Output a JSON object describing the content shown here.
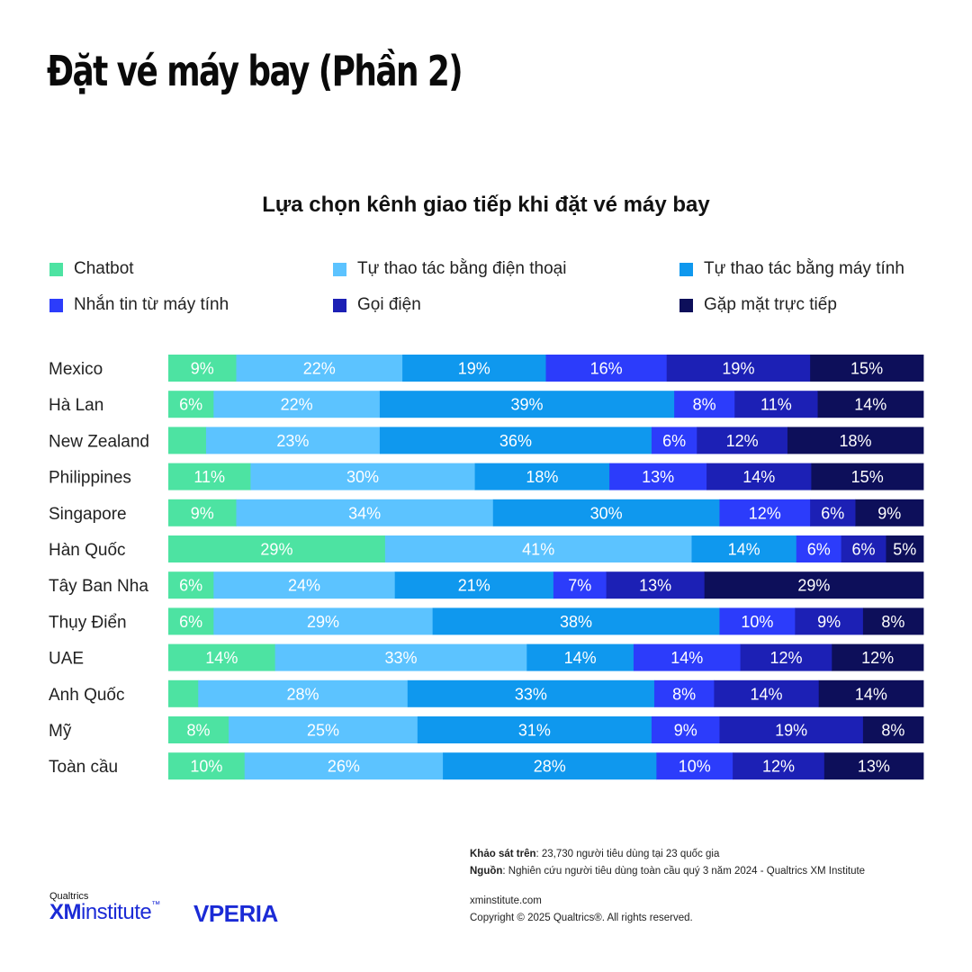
{
  "page_title": "Đặt vé máy bay (Phần 2)",
  "colors": [
    "#4de3a2",
    "#5cc3ff",
    "#0f98ee",
    "#2c3cfb",
    "#1c20b5",
    "#0d0f5a"
  ],
  "chart_data": {
    "type": "bar",
    "orientation": "horizontal",
    "stacked": "percent",
    "title": "Lựa chọn kênh giao tiếp khi đặt vé máy bay",
    "legend_position": "top",
    "categories": [
      "Mexico",
      "Hà Lan",
      "New Zealand",
      "Philippines",
      "Singapore",
      "Hàn Quốc",
      "Tây Ban Nha",
      "Thụy Điển",
      "UAE",
      "Anh Quốc",
      "Mỹ",
      "Toàn cầu"
    ],
    "series": [
      {
        "name": "Chatbot",
        "values": [
          9,
          6,
          5,
          11,
          9,
          29,
          6,
          6,
          14,
          4,
          8,
          10
        ]
      },
      {
        "name": "Tự thao tác bằng điện thoại",
        "values": [
          22,
          22,
          23,
          30,
          34,
          41,
          24,
          29,
          33,
          28,
          25,
          26
        ]
      },
      {
        "name": "Tự thao tác bằng máy tính",
        "values": [
          19,
          39,
          36,
          18,
          30,
          14,
          21,
          38,
          14,
          33,
          31,
          28
        ]
      },
      {
        "name": "Nhắn tin từ máy tính",
        "values": [
          16,
          8,
          6,
          13,
          12,
          6,
          7,
          10,
          14,
          8,
          9,
          10
        ]
      },
      {
        "name": "Gọi điện",
        "values": [
          19,
          11,
          12,
          14,
          6,
          6,
          13,
          9,
          12,
          14,
          19,
          12
        ]
      },
      {
        "name": "Gặp mặt trực tiếp",
        "values": [
          15,
          14,
          18,
          15,
          9,
          5,
          29,
          8,
          12,
          14,
          8,
          13
        ]
      }
    ],
    "data_labels": [
      [
        "9%",
        "22%",
        "19%",
        "16%",
        "19%",
        "15%"
      ],
      [
        "6%",
        "22%",
        "39%",
        "8%",
        "11%",
        "14%"
      ],
      [
        "",
        "23%",
        "36%",
        "6%",
        "12%",
        "18%"
      ],
      [
        "11%",
        "30%",
        "18%",
        "13%",
        "14%",
        "15%"
      ],
      [
        "9%",
        "34%",
        "30%",
        "12%",
        "6%",
        "9%"
      ],
      [
        "29%",
        "41%",
        "14%",
        "6%",
        "6%",
        "5%"
      ],
      [
        "6%",
        "24%",
        "21%",
        "7%",
        "13%",
        "29%"
      ],
      [
        "6%",
        "29%",
        "38%",
        "10%",
        "9%",
        "8%"
      ],
      [
        "14%",
        "33%",
        "14%",
        "14%",
        "12%",
        "12%"
      ],
      [
        "",
        "28%",
        "33%",
        "8%",
        "14%",
        "14%"
      ],
      [
        "8%",
        "25%",
        "31%",
        "9%",
        "19%",
        "8%"
      ],
      [
        "10%",
        "26%",
        "28%",
        "10%",
        "12%",
        "13%"
      ]
    ]
  },
  "footer": {
    "survey_label": "Khảo sát trên",
    "survey_text": ": 23,730 người tiêu dùng tại 23 quốc gia",
    "source_label": "Nguồn",
    "source_text": ": Nghiên cứu người tiêu dùng toàn cầu quý 3 năm 2024 - Qualtrics XM Institute",
    "website": "xminstitute.com",
    "copyright": "Copyright © 2025 Qualtrics®. All rights reserved."
  },
  "logos": {
    "qualtrics_small": "Qualtrics",
    "xm": "XM",
    "institute": "institute",
    "tm": "™",
    "vperia": "VPERIA"
  }
}
